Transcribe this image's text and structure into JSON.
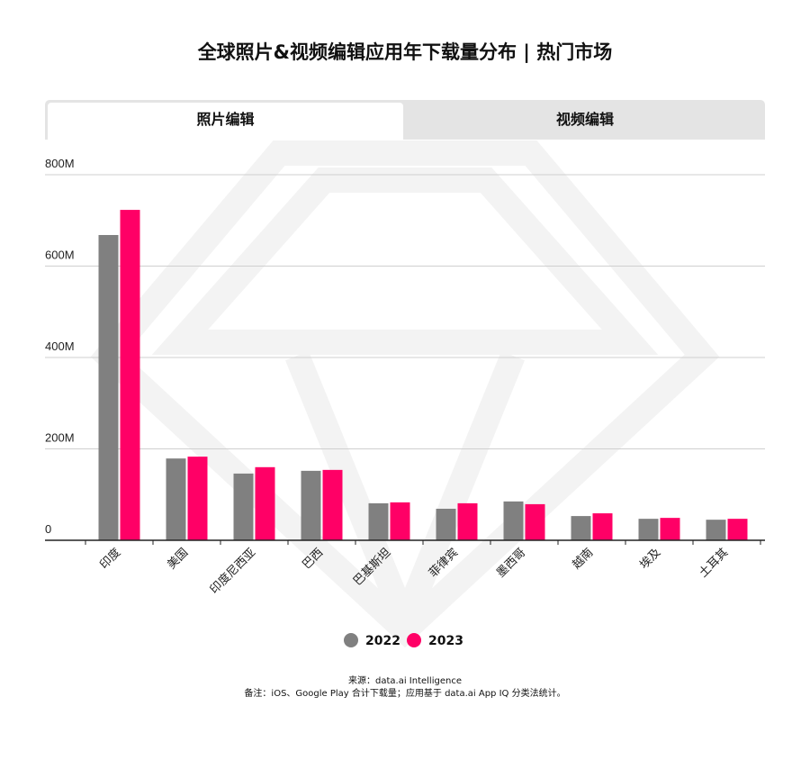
{
  "title": "全球照片&视频编辑应用年下载量分布 | 热门市场",
  "tabs": [
    {
      "label": "照片编辑",
      "active": true
    },
    {
      "label": "视频编辑",
      "active": false
    }
  ],
  "chart_data": {
    "type": "bar",
    "categories": [
      "印度",
      "美国",
      "印度尼西亚",
      "巴西",
      "巴基斯坦",
      "菲律宾",
      "墨西哥",
      "越南",
      "埃及",
      "土耳其"
    ],
    "series": [
      {
        "name": "2022",
        "color": "#808080",
        "values": [
          668,
          179,
          146,
          152,
          81,
          69,
          85,
          53,
          47,
          45
        ]
      },
      {
        "name": "2023",
        "color": "#ff0066",
        "values": [
          723,
          183,
          160,
          154,
          83,
          81,
          79,
          59,
          49,
          47
        ]
      }
    ],
    "yticks": [
      {
        "value": 0,
        "label": "0"
      },
      {
        "value": 200,
        "label": "200M"
      },
      {
        "value": 400,
        "label": "400M"
      },
      {
        "value": 600,
        "label": "600M"
      },
      {
        "value": 800,
        "label": "800M"
      }
    ],
    "ylim": [
      0,
      800
    ],
    "grid": true,
    "legend_placement": "bottom"
  },
  "footer": {
    "source": "来源：data.ai Intelligence",
    "note": "备注：iOS、Google Play 合计下载量；应用基于 data.ai App IQ 分类法统计。"
  }
}
